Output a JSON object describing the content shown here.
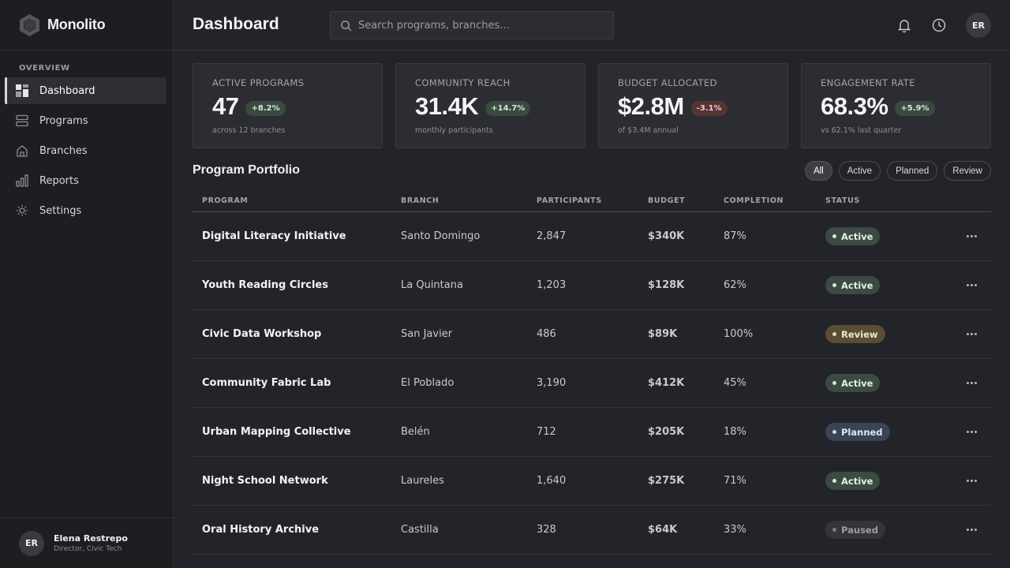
{
  "app": {
    "name": "Monolito"
  },
  "sidebar": {
    "section": "OVERVIEW",
    "items": [
      {
        "label": "Dashboard",
        "icon": "grid-icon",
        "active": true
      },
      {
        "label": "Programs",
        "icon": "layers-icon",
        "active": false
      },
      {
        "label": "Branches",
        "icon": "home-icon",
        "active": false
      },
      {
        "label": "Reports",
        "icon": "bar-chart-icon",
        "active": false
      },
      {
        "label": "Settings",
        "icon": "sun-icon",
        "active": false
      }
    ],
    "user": {
      "initials": "ER",
      "name": "Elena Restrepo",
      "role": "Director, Civic Tech"
    }
  },
  "header": {
    "title": "Dashboard",
    "search_placeholder": "Search programs, branches...",
    "avatar_initials": "ER"
  },
  "stats": [
    {
      "label": "ACTIVE PROGRAMS",
      "value": "47",
      "delta": "+8.2%",
      "trend": "up",
      "sub": "across 12 branches"
    },
    {
      "label": "COMMUNITY REACH",
      "value": "31.4K",
      "delta": "+14.7%",
      "trend": "up",
      "sub": "monthly participants"
    },
    {
      "label": "BUDGET ALLOCATED",
      "value": "$2.8M",
      "delta": "-3.1%",
      "trend": "down",
      "sub": "of $3.4M annual"
    },
    {
      "label": "ENGAGEMENT RATE",
      "value": "68.3%",
      "delta": "+5.9%",
      "trend": "up",
      "sub": "vs 62.1% last quarter"
    }
  ],
  "portfolio": {
    "title": "Program Portfolio",
    "filters": [
      "All",
      "Active",
      "Planned",
      "Review"
    ],
    "columns": [
      "PROGRAM",
      "BRANCH",
      "PARTICIPANTS",
      "BUDGET",
      "COMPLETION",
      "STATUS"
    ],
    "rows": [
      {
        "program": "Digital Literacy Initiative",
        "branch": "Santo Domingo",
        "participants": "2,847",
        "budget": "$340K",
        "completion": "87%",
        "status": "Active"
      },
      {
        "program": "Youth Reading Circles",
        "branch": "La Quintana",
        "participants": "1,203",
        "budget": "$128K",
        "completion": "62%",
        "status": "Active"
      },
      {
        "program": "Civic Data Workshop",
        "branch": "San Javier",
        "participants": "486",
        "budget": "$89K",
        "completion": "100%",
        "status": "Review"
      },
      {
        "program": "Community Fabric Lab",
        "branch": "El Poblado",
        "participants": "3,190",
        "budget": "$412K",
        "completion": "45%",
        "status": "Active"
      },
      {
        "program": "Urban Mapping Collective",
        "branch": "Belén",
        "participants": "712",
        "budget": "$205K",
        "completion": "18%",
        "status": "Planned"
      },
      {
        "program": "Night School Network",
        "branch": "Laureles",
        "participants": "1,640",
        "budget": "$275K",
        "completion": "71%",
        "status": "Active"
      },
      {
        "program": "Oral History Archive",
        "branch": "Castilla",
        "participants": "328",
        "budget": "$64K",
        "completion": "33%",
        "status": "Paused"
      }
    ]
  },
  "colors": {
    "background": "#232429",
    "sidebar": "#1d1e22",
    "card": "#2c2d32",
    "positive": "#3a4a40",
    "negative": "#553434"
  }
}
